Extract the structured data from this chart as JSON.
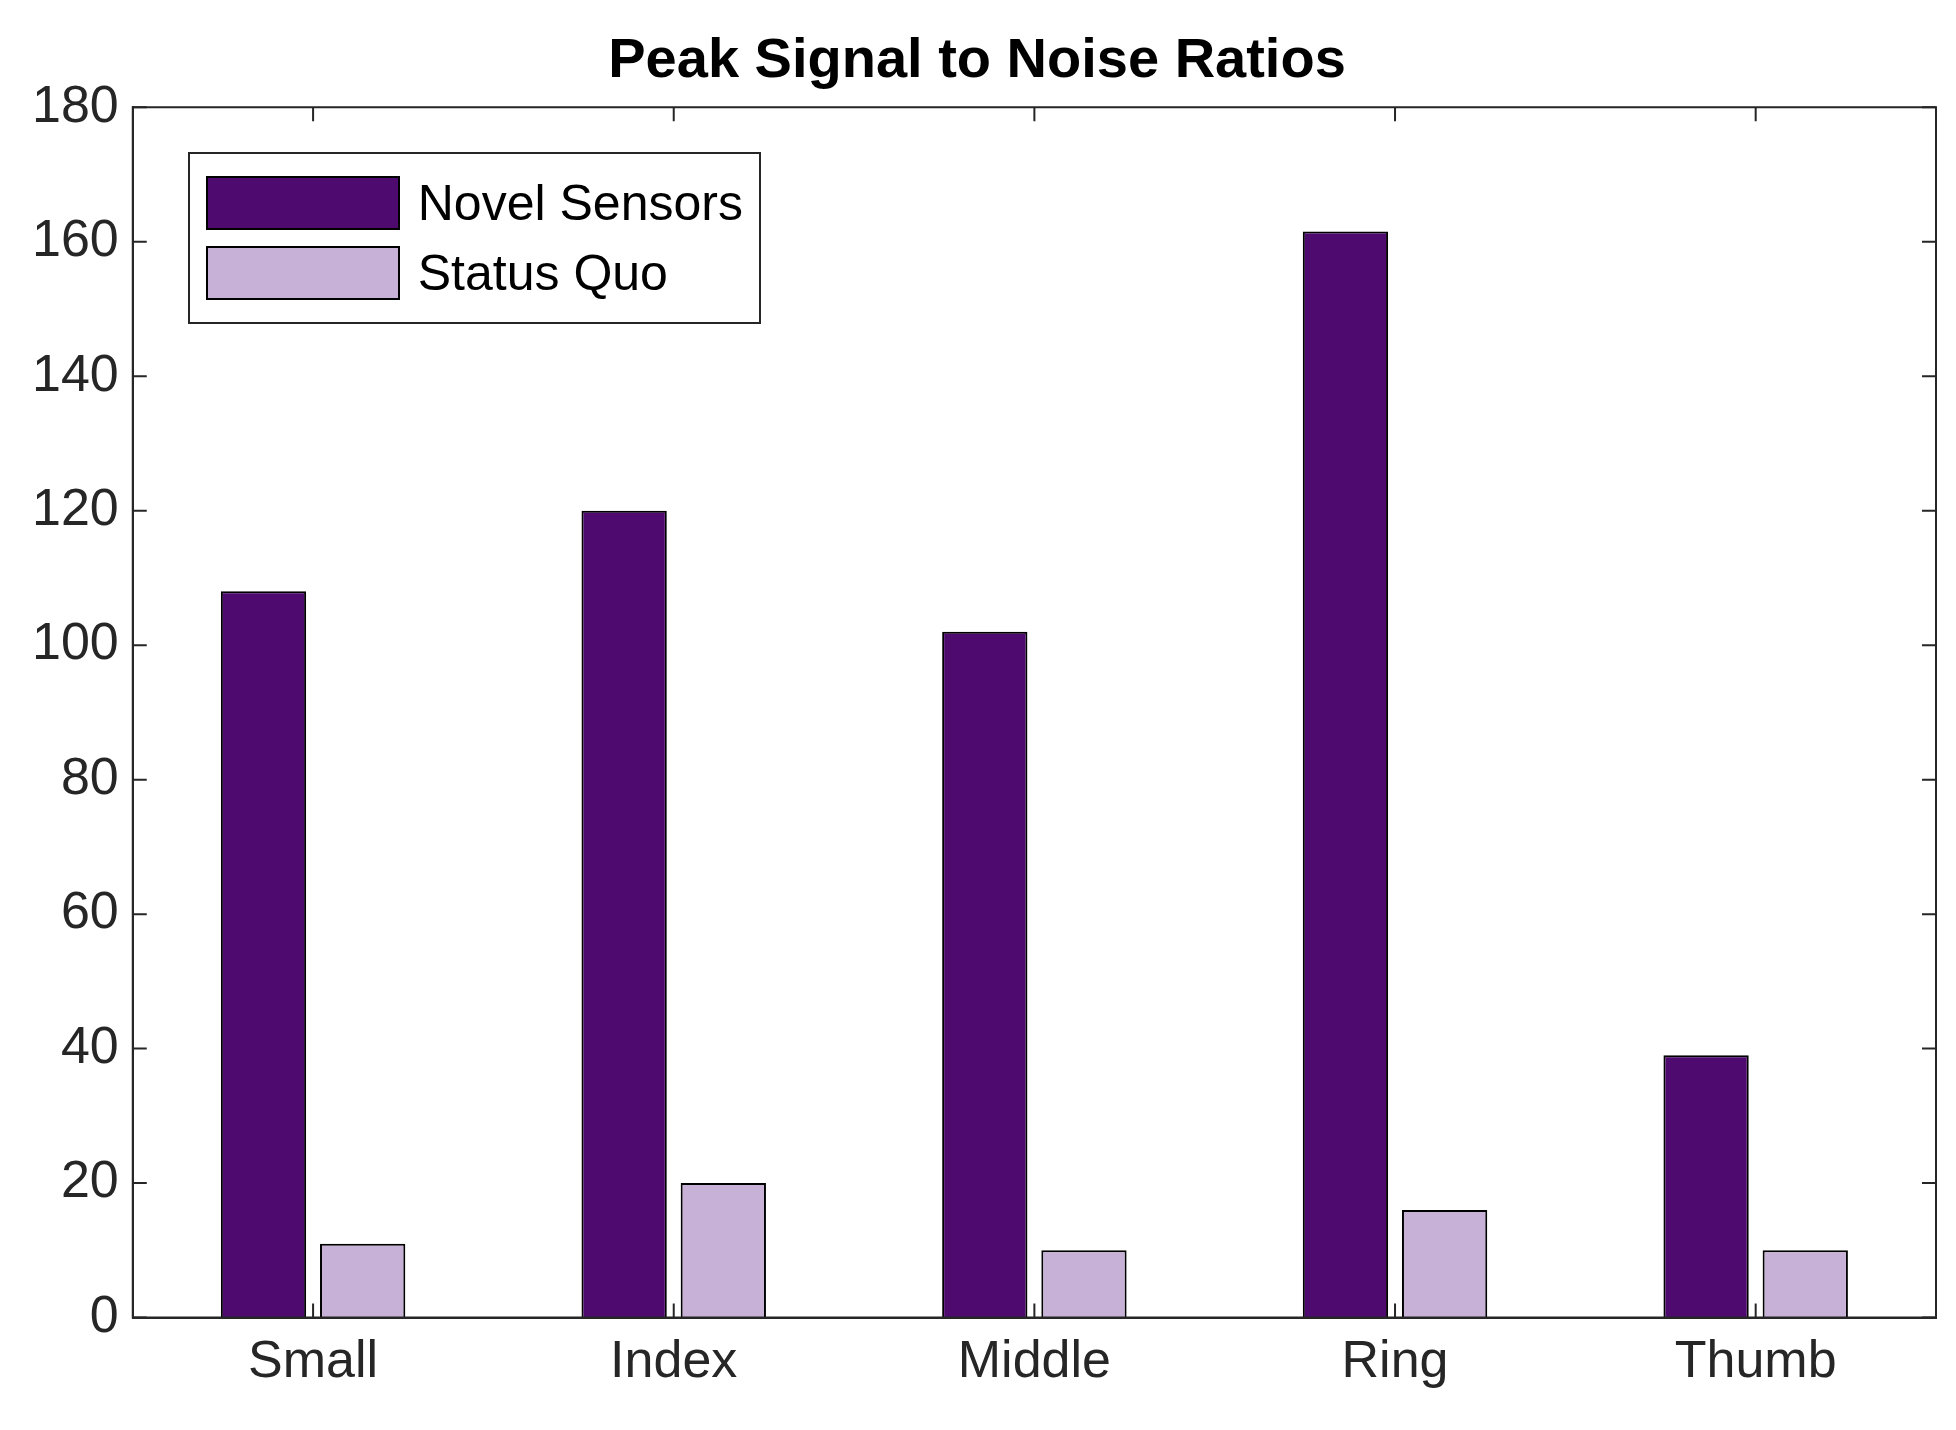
{
  "chart_data": {
    "type": "bar",
    "title": "Peak Signal to Noise Ratios",
    "categories": [
      "Small",
      "Index",
      "Middle",
      "Ring",
      "Thumb"
    ],
    "series": [
      {
        "name": "Novel Sensors",
        "color": "#4f0a70",
        "values": [
          108,
          120,
          102,
          161.5,
          39
        ]
      },
      {
        "name": "Status Quo",
        "color": "#c8b1d6",
        "values": [
          11,
          20,
          10,
          16,
          10
        ]
      }
    ],
    "ylim": [
      0,
      180
    ],
    "yticks": [
      0,
      20,
      40,
      60,
      80,
      100,
      120,
      140,
      160,
      180
    ],
    "grid": false,
    "legend": "top left"
  }
}
